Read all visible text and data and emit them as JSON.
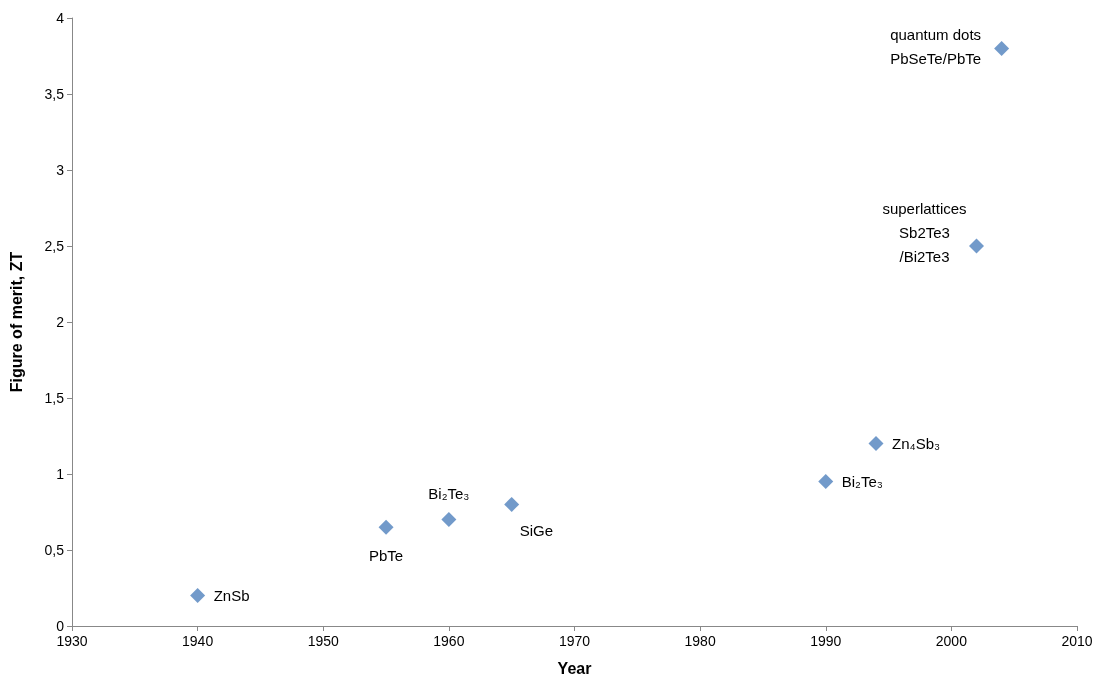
{
  "chart_data": {
    "type": "scatter",
    "xlabel": "Year",
    "ylabel": "Figure of merit, ZT",
    "x": [
      1940,
      1955,
      1960,
      1965,
      1990,
      1994,
      2002,
      2004
    ],
    "values": [
      0.2,
      0.65,
      0.7,
      0.8,
      0.95,
      1.2,
      2.5,
      3.8
    ],
    "color": "#4f81bd",
    "marker": "diamond",
    "grid": false,
    "xlim": [
      1930,
      2010
    ],
    "xticks": [
      1930,
      1940,
      1950,
      1960,
      1970,
      1980,
      1990,
      2000,
      2010
    ],
    "ylim": [
      0,
      4
    ],
    "yticks": [
      0,
      {
        "value": 0.5,
        "label": "0,5"
      },
      1,
      {
        "value": 1.5,
        "label": "1,5"
      },
      2,
      {
        "value": 2.5,
        "label": "2,5"
      },
      3,
      {
        "value": 3.5,
        "label": "3,5"
      },
      4
    ],
    "annotations": [
      {
        "text": "ZnSb",
        "x": 1940,
        "y": 0.2
      },
      {
        "text": "PbTe",
        "x": 1955,
        "y": 0.65
      },
      {
        "text": "Bi₂Te₃",
        "x": 1960,
        "y": 0.7
      },
      {
        "text": "SiGe",
        "x": 1965,
        "y": 0.8
      },
      {
        "text": "Bi₂Te₃",
        "x": 1990,
        "y": 0.95
      },
      {
        "text": "Zn₄Sb₃",
        "x": 1994,
        "y": 1.2
      },
      {
        "text": "superlattices\nSb2Te3\n/Bi2Te3",
        "x": 2002,
        "y": 2.5
      },
      {
        "text": "quantum dots\nPbSeTe/PbTe",
        "x": 2004,
        "y": 3.8
      }
    ]
  }
}
